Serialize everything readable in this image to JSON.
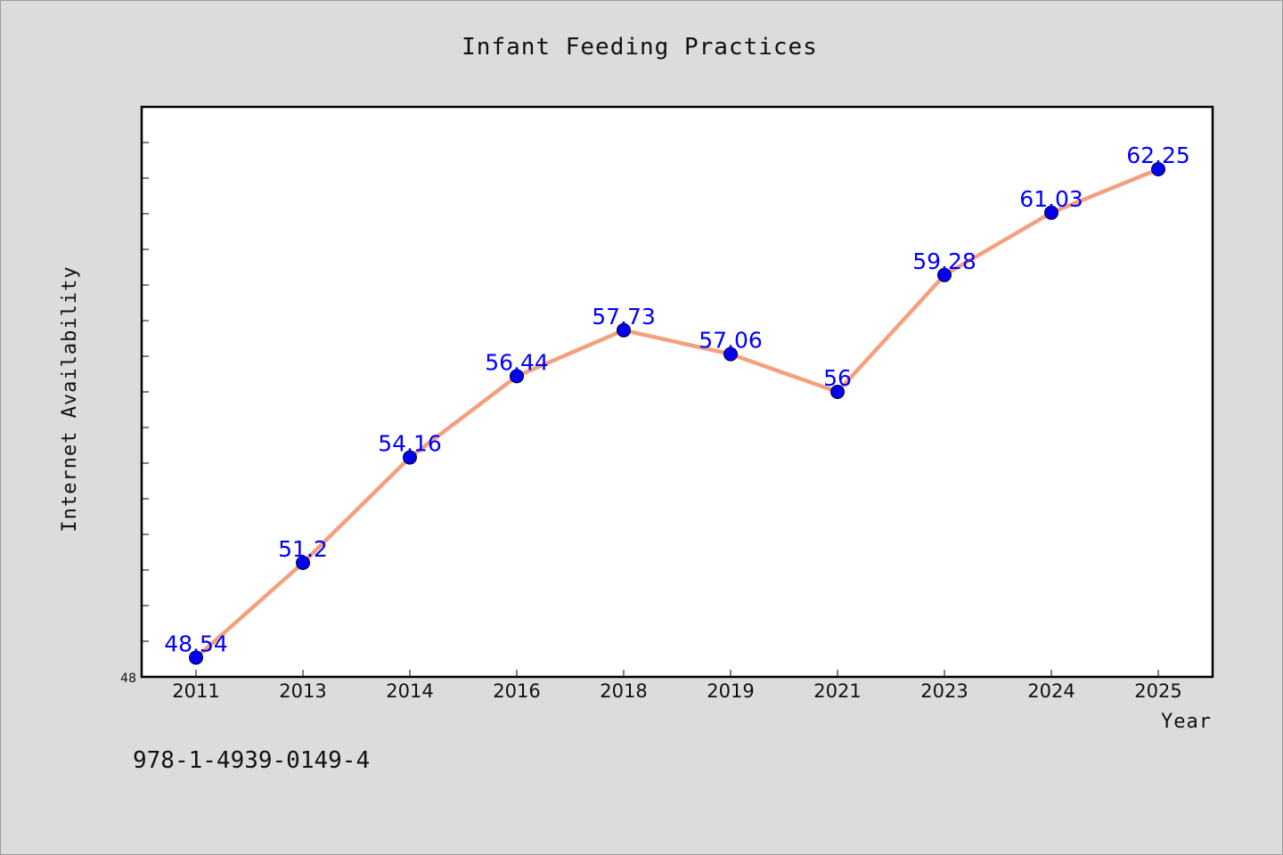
{
  "chart_data": {
    "type": "line",
    "title": "Infant Feeding Practices",
    "xlabel": "Year",
    "ylabel": "Internet Availability",
    "categories": [
      "2011",
      "2013",
      "2014",
      "2016",
      "2018",
      "2019",
      "2021",
      "2023",
      "2024",
      "2025"
    ],
    "series": [
      {
        "values": [
          48.54,
          51.2,
          54.16,
          56.44,
          57.73,
          57.06,
          56,
          59.28,
          61.03,
          62.25
        ],
        "labels": [
          "48.54",
          "51.2",
          "54.16",
          "56.44",
          "57.73",
          "57.06",
          "56",
          "59.28",
          "61.03",
          "62.25"
        ],
        "line_color": "#f4a07e",
        "marker_color": "#0000ee"
      }
    ],
    "ylim": [
      48,
      64
    ],
    "y_tick_labels": [
      "48"
    ],
    "grid": false,
    "legend": "none"
  },
  "footer": {
    "isbn": "978-1-4939-0149-4"
  }
}
